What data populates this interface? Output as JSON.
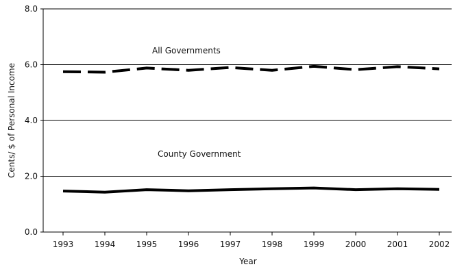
{
  "chart_data": {
    "type": "line",
    "x": [
      1993,
      1994,
      1995,
      1996,
      1997,
      1998,
      1999,
      2000,
      2001,
      2002
    ],
    "xlabel": "Year",
    "ylabel": "Cents/ $ of Personal Income",
    "ylim": [
      0.0,
      8.0
    ],
    "yticks": [
      "0.0",
      "2.0",
      "4.0",
      "6.0",
      "8.0"
    ],
    "grid": "horizontal",
    "series": [
      {
        "name": "All Governments",
        "style": "dashed",
        "color": "#000000",
        "values": [
          5.75,
          5.73,
          5.88,
          5.8,
          5.9,
          5.8,
          5.94,
          5.82,
          5.93,
          5.85
        ]
      },
      {
        "name": "County Government",
        "style": "solid",
        "color": "#000000",
        "values": [
          1.47,
          1.43,
          1.52,
          1.48,
          1.52,
          1.55,
          1.58,
          1.52,
          1.55,
          1.53
        ]
      }
    ]
  }
}
